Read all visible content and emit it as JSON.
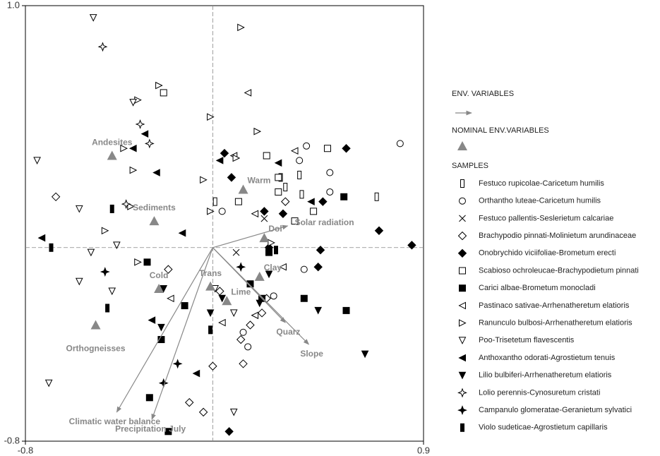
{
  "chart_data": {
    "type": "ordination",
    "xlim": [
      -0.8,
      0.9
    ],
    "ylim": [
      -0.8,
      1.0
    ],
    "xticks": [
      -0.8,
      0.9
    ],
    "yticks": [
      -0.8,
      {
        "value": 1,
        "label": "1.0"
      }
    ],
    "legend_heads": [
      "ENV. VARIABLES",
      "NOMINAL ENV.VARIABLES",
      "SAMPLES"
    ],
    "env_variables": {
      "color": "#888888",
      "names": [
        "Climatic water balance",
        "Precipitation July",
        "Slope",
        "Solar radiation",
        "Quarz"
      ],
      "x": [
        -0.41,
        -0.26,
        0.41,
        0.32,
        0.31
      ],
      "y": [
        -0.68,
        -0.71,
        -0.4,
        0.09,
        -0.31
      ]
    },
    "nominal_variables": {
      "color": "#888888",
      "names": [
        "Andesites",
        "Sediments",
        "Warm",
        "Cold",
        "Orthogneisses",
        "Dol",
        "Clay",
        "Trans",
        "Lime"
      ],
      "x": [
        -0.43,
        -0.25,
        0.13,
        -0.23,
        -0.5,
        0.22,
        0.2,
        -0.01,
        0.06
      ],
      "y": [
        0.38,
        0.11,
        0.24,
        -0.17,
        -0.32,
        0.04,
        -0.12,
        -0.16,
        -0.22
      ]
    },
    "samples": [
      {
        "name": "Festuco rupicolae-Caricetum humilis",
        "marker": "tall-rect",
        "x": [
          0.7,
          0.01,
          0.29,
          0.38,
          0.31,
          0.37
        ],
        "y": [
          0.21,
          0.19,
          0.29,
          0.22,
          0.25,
          0.3
        ]
      },
      {
        "name": "Orthantho luteae-Caricetum humilis",
        "marker": "circle",
        "x": [
          0.8,
          0.4,
          0.5,
          0.39,
          0.26,
          0.37,
          0.5,
          0.15,
          0.04,
          0.13
        ],
        "y": [
          0.43,
          0.42,
          0.31,
          -0.09,
          -0.2,
          0.36,
          0.23,
          -0.41,
          0.15,
          -0.35
        ]
      },
      {
        "name": "Festuco pallentis-Seslerietum calcariae",
        "marker": "cross",
        "x": [
          0.1,
          0.22
        ],
        "y": [
          -0.02,
          0.12
        ]
      },
      {
        "name": "Brachypodio pinnati-Molinietum arundinaceae",
        "marker": "diamond",
        "x": [
          -0.67,
          -0.04,
          -0.1,
          0.0,
          0.13,
          0.16,
          0.21,
          0.03,
          0.12,
          0.23,
          -0.19,
          0.31
        ],
        "y": [
          0.21,
          -0.68,
          -0.64,
          -0.49,
          -0.48,
          -0.32,
          -0.27,
          -0.18,
          -0.38,
          -0.21,
          -0.09,
          0.19
        ]
      },
      {
        "name": "Onobrychido viciifoliae-Brometum erecti",
        "marker": "diamond-filled",
        "x": [
          0.85,
          0.57,
          0.71,
          0.07,
          0.24,
          0.46,
          0.47,
          0.05,
          0.08,
          0.22,
          0.45,
          0.3
        ],
        "y": [
          0.01,
          0.41,
          0.07,
          -0.76,
          0.0,
          -0.01,
          0.19,
          0.39,
          0.29,
          0.15,
          -0.08,
          0.14
        ]
      },
      {
        "name": "Scabioso ochroleucae-Brachypodietum pinnati",
        "marker": "square",
        "x": [
          -0.21,
          0.23,
          0.49,
          0.28,
          0.43,
          0.11,
          0.35,
          0.28
        ],
        "y": [
          0.64,
          0.38,
          0.41,
          0.29,
          0.15,
          0.19,
          0.11,
          0.23
        ]
      },
      {
        "name": "Carici albae-Brometum monocladi",
        "marker": "square-filled",
        "x": [
          -0.19,
          -0.27,
          -0.22,
          -0.12,
          0.21,
          0.39,
          0.57,
          0.56,
          0.24,
          0.16,
          -0.28
        ],
        "y": [
          -0.76,
          -0.62,
          -0.38,
          -0.24,
          -0.21,
          -0.21,
          -0.26,
          0.21,
          -0.02,
          -0.15,
          -0.06
        ]
      },
      {
        "name": "Pastinaco sativae-Arrhenatheretum elatioris",
        "marker": "tri-left",
        "x": [
          0.15,
          0.09,
          0.35,
          0.18,
          0.04,
          -0.18,
          0.3,
          0.18
        ],
        "y": [
          0.64,
          0.38,
          0.4,
          -0.28,
          -0.31,
          -0.21,
          -0.08,
          0.14
        ]
      },
      {
        "name": "Ranunculo bulbosi-Arrhenatheretum elatioris",
        "marker": "tri-right",
        "x": [
          0.12,
          -0.23,
          -0.32,
          -0.01,
          0.19,
          -0.38,
          -0.34,
          -0.04,
          -0.01,
          -0.35,
          -0.46,
          -0.32,
          0.1,
          0.25
        ],
        "y": [
          0.91,
          0.67,
          0.61,
          0.54,
          0.48,
          0.41,
          0.32,
          0.28,
          0.15,
          0.17,
          0.07,
          -0.06,
          0.37,
          0.02
        ]
      },
      {
        "name": "Poo-Trisetetum flavescentis",
        "marker": "tri-down",
        "x": [
          -0.51,
          -0.75,
          -0.57,
          -0.7,
          0.09,
          -0.52,
          -0.43,
          -0.57,
          0.09,
          -0.34,
          -0.41,
          0.01
        ],
        "y": [
          0.95,
          0.36,
          0.16,
          -0.56,
          -0.68,
          -0.02,
          -0.18,
          -0.14,
          -0.27,
          0.6,
          0.01,
          -0.17
        ]
      },
      {
        "name": "Anthoxantho odorati-Agrostietum tenuis",
        "marker": "tri-left-filled",
        "x": [
          -0.73,
          -0.34,
          -0.29,
          -0.13,
          0.03,
          0.28,
          0.42,
          -0.24,
          -0.07,
          -0.26
        ],
        "y": [
          0.04,
          0.41,
          0.47,
          0.06,
          0.36,
          0.35,
          0.19,
          0.31,
          -0.52,
          -0.3
        ]
      },
      {
        "name": "Lilio bulbiferi-Arrhenatheretum elatioris",
        "marker": "tri-down-filled",
        "x": [
          0.65,
          0.45,
          -0.22,
          0.04,
          0.2,
          0.24,
          -0.01,
          -0.21
        ],
        "y": [
          -0.44,
          -0.26,
          -0.33,
          -0.21,
          -0.23,
          -0.11,
          -0.27,
          -0.17
        ]
      },
      {
        "name": "Lolio perennis-Cynosuretum cristati",
        "marker": "star",
        "x": [
          -0.47,
          -0.31,
          -0.27,
          -0.37
        ],
        "y": [
          0.83,
          0.51,
          0.43,
          0.18
        ]
      },
      {
        "name": "Campanulo glomeratae-Geranietum sylvatici",
        "marker": "star-filled",
        "x": [
          -0.21,
          -0.15,
          -0.46,
          0.12
        ],
        "y": [
          -0.56,
          -0.48,
          -0.1,
          -0.08
        ]
      },
      {
        "name": "Violo sudeticae-Agrostietum capillaris",
        "marker": "tall-rect-filled",
        "x": [
          -0.45,
          -0.69,
          -0.43,
          0.27,
          -0.01
        ],
        "y": [
          -0.25,
          0.0,
          0.16,
          -0.01,
          -0.34
        ]
      }
    ]
  }
}
